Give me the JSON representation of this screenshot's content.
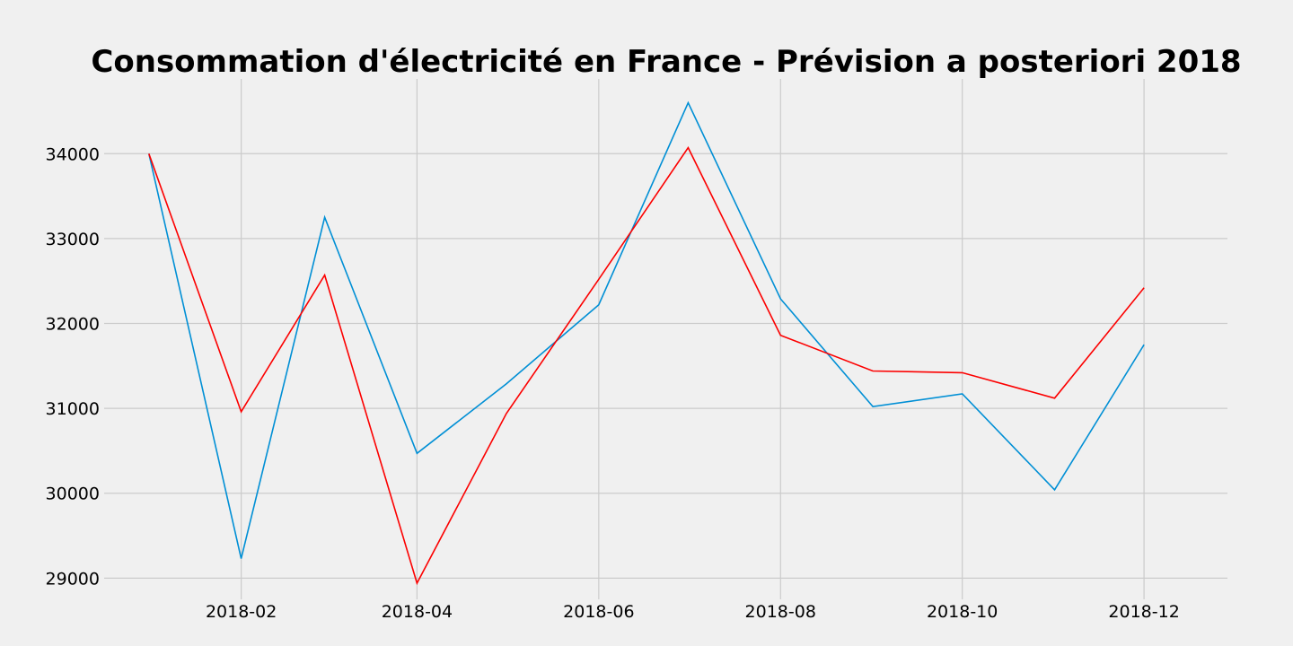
{
  "chart_data": {
    "type": "line",
    "title": "Consommation d'électricité en France - Prévision a posteriori 2018",
    "xlabel": "",
    "ylabel": "",
    "x": [
      "2018-01-01",
      "2018-02-01",
      "2018-03-01",
      "2018-04-01",
      "2018-05-01",
      "2018-06-01",
      "2018-07-01",
      "2018-08-01",
      "2018-09-01",
      "2018-10-01",
      "2018-11-01",
      "2018-12-01"
    ],
    "x_ticks": [
      "2018-02",
      "2018-04",
      "2018-06",
      "2018-08",
      "2018-10",
      "2018-12"
    ],
    "x_range": [
      "2017-12-17",
      "2018-12-29"
    ],
    "y_ticks": [
      29000,
      30000,
      31000,
      32000,
      33000,
      34000
    ],
    "ylim": [
      28750,
      34880
    ],
    "grid": true,
    "series": [
      {
        "color": "#008fd5",
        "values": [
          34000,
          29230,
          33250,
          30470,
          31290,
          32220,
          34600,
          32290,
          31020,
          31170,
          30040,
          31750
        ]
      },
      {
        "color": "#fc0000",
        "values": [
          34000,
          30960,
          32570,
          28940,
          30940,
          32520,
          34070,
          31860,
          31440,
          31420,
          31120,
          32420
        ]
      }
    ]
  }
}
